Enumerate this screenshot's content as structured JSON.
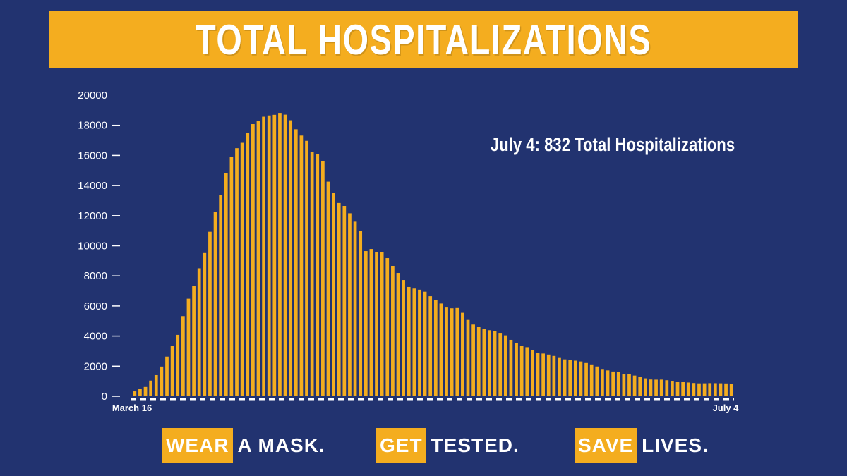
{
  "header": {
    "title": "TOTAL HOSPITALIZATIONS"
  },
  "annotation": "July 4: 832 Total Hospitalizations",
  "footer": {
    "slogans": [
      {
        "highlight": "WEAR",
        "rest": "A MASK."
      },
      {
        "highlight": "GET",
        "rest": "TESTED."
      },
      {
        "highlight": "SAVE",
        "rest": "LIVES."
      }
    ]
  },
  "colors": {
    "background": "#223370",
    "accent": "#f4ad1f",
    "text": "#ffffff"
  },
  "chart_data": {
    "type": "bar",
    "title": "TOTAL HOSPITALIZATIONS",
    "xlabel": "",
    "ylabel": "",
    "ylim": [
      0,
      20000
    ],
    "yticks": [
      0,
      2000,
      4000,
      6000,
      8000,
      10000,
      12000,
      14000,
      16000,
      18000,
      20000
    ],
    "x_tick_labels": [
      "March 16",
      "July 4"
    ],
    "grid": false,
    "values": [
      326,
      496,
      617,
      1042,
      1406,
      1974,
      2635,
      3343,
      4079,
      5327,
      6481,
      7328,
      8503,
      9517,
      10929,
      12226,
      13383,
      14810,
      15905,
      16479,
      16837,
      17493,
      18079,
      18279,
      18569,
      18654,
      18697,
      18825,
      18707,
      18335,
      17735,
      17316,
      16967,
      16213,
      16103,
      15599,
      14258,
      13524,
      12839,
      12646,
      12159,
      11598,
      10993,
      9647,
      9786,
      9600,
      9600,
      9179,
      8665,
      8196,
      7726,
      7262,
      7154,
      7079,
      6946,
      6646,
      6394,
      6163,
      5897,
      5845,
      5863,
      5545,
      5073,
      4765,
      4602,
      4467,
      4389,
      4335,
      4212,
      4046,
      3749,
      3541,
      3342,
      3259,
      3068,
      2869,
      2839,
      2772,
      2679,
      2592,
      2450,
      2416,
      2366,
      2313,
      2211,
      2116,
      1979,
      1814,
      1717,
      1644,
      1594,
      1498,
      1470,
      1375,
      1298,
      1191,
      1113,
      1103,
      1106,
      1067,
      1029,
      967,
      946,
      915,
      880,
      857,
      860,
      872,
      869,
      862,
      852,
      832
    ]
  }
}
